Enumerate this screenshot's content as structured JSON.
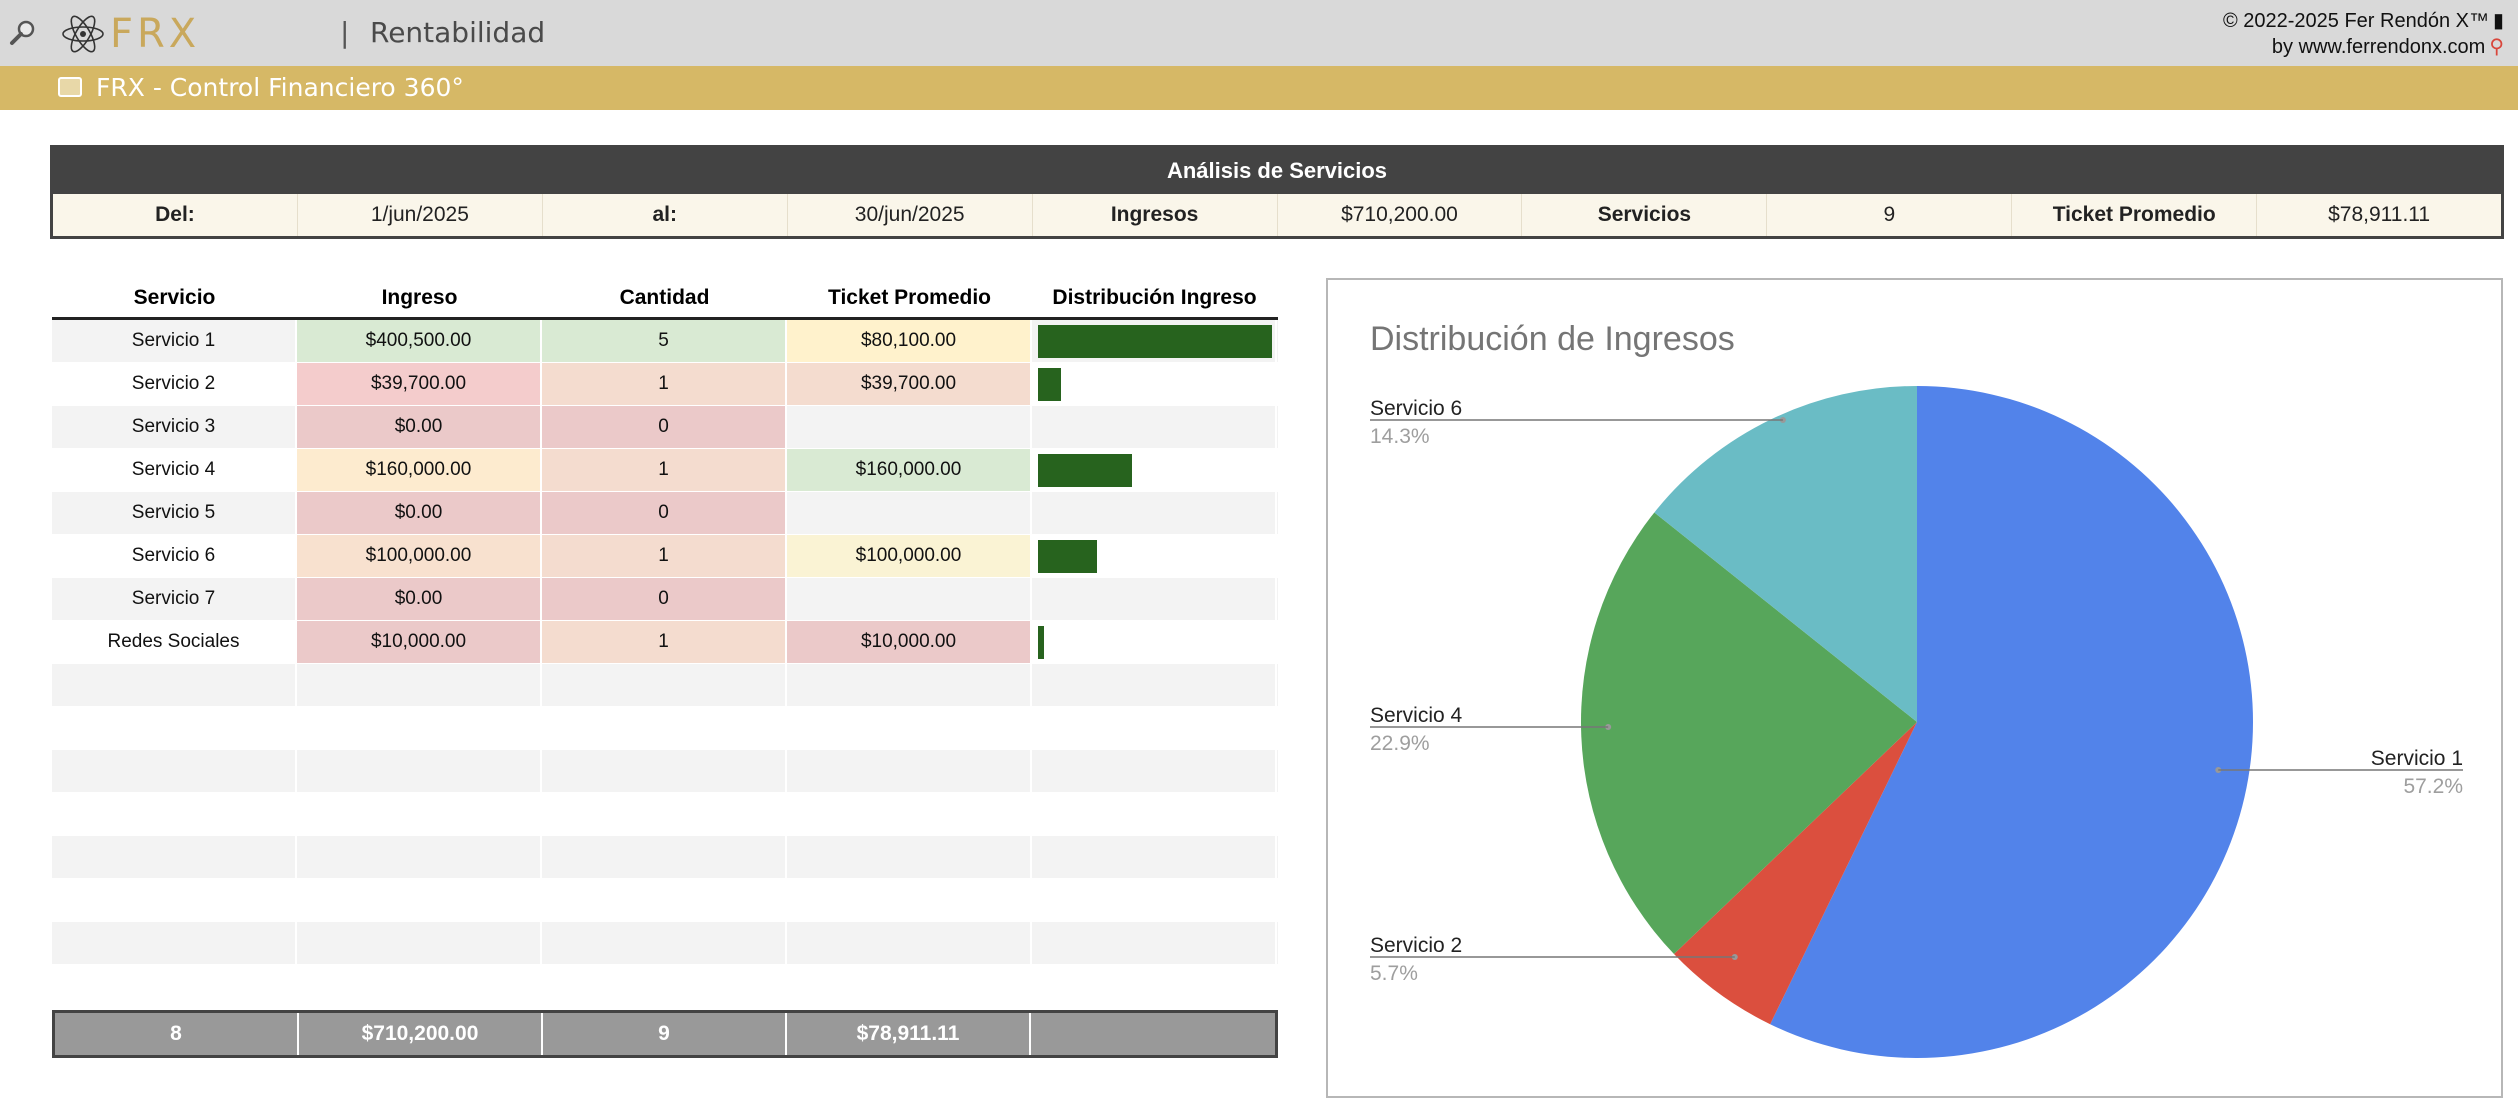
{
  "topbar": {
    "logo_text": "FRX",
    "separator": "|",
    "title": "Rentabilidad",
    "credits_line1": "© 2022-2025 Fer Rendón X™",
    "credits_line2": "by www.ferrendonx.com",
    "icons": [
      "search-icon",
      "atom-logo-icon",
      "phone-icon",
      "pin-icon"
    ]
  },
  "banner": {
    "title": "FRX - Control Financiero 360°"
  },
  "summary": {
    "title": "Análisis de Servicios",
    "from_label": "Del:",
    "from_value": "1/jun/2025",
    "to_label": "al:",
    "to_value": "30/jun/2025",
    "income_label": "Ingresos",
    "income_value": "$710,200.00",
    "services_label": "Servicios",
    "services_value": "9",
    "ticket_label": "Ticket Promedio",
    "ticket_value": "$78,911.11"
  },
  "table": {
    "headers": [
      "Servicio",
      "Ingreso",
      "Cantidad",
      "Ticket Promedio",
      "Distribución Ingreso"
    ],
    "rows": [
      {
        "servicio": "Servicio 1",
        "ingreso": "$400,500.00",
        "cantidad": "5",
        "ticket": "$80,100.00",
        "share": 1.0,
        "colors": [
          "#d9ead3",
          "#d9ead3",
          "#fff2cc"
        ]
      },
      {
        "servicio": "Servicio 2",
        "ingreso": "$39,700.00",
        "cantidad": "1",
        "ticket": "$39,700.00",
        "share": 0.099,
        "colors": [
          "#f4cccc",
          "#f4dccf",
          "#f4dccf"
        ]
      },
      {
        "servicio": "Servicio 3",
        "ingreso": "$0.00",
        "cantidad": "0",
        "ticket": "",
        "share": 0,
        "colors": [
          "#ebc9c9",
          "#ebc9c9",
          ""
        ]
      },
      {
        "servicio": "Servicio 4",
        "ingreso": "$160,000.00",
        "cantidad": "1",
        "ticket": "$160,000.00",
        "share": 0.4,
        "colors": [
          "#fdebcf",
          "#f4dccf",
          "#d9ead3"
        ]
      },
      {
        "servicio": "Servicio 5",
        "ingreso": "$0.00",
        "cantidad": "0",
        "ticket": "",
        "share": 0,
        "colors": [
          "#ebc9c9",
          "#ebc9c9",
          ""
        ]
      },
      {
        "servicio": "Servicio 6",
        "ingreso": "$100,000.00",
        "cantidad": "1",
        "ticket": "$100,000.00",
        "share": 0.25,
        "colors": [
          "#f8e1cf",
          "#f4dccf",
          "#faf3d4"
        ]
      },
      {
        "servicio": "Servicio 7",
        "ingreso": "$0.00",
        "cantidad": "0",
        "ticket": "",
        "share": 0,
        "colors": [
          "#ebc9c9",
          "#ebc9c9",
          ""
        ]
      },
      {
        "servicio": "Redes Sociales",
        "ingreso": "$10,000.00",
        "cantidad": "1",
        "ticket": "$10,000.00",
        "share": 0.025,
        "colors": [
          "#ebc9c9",
          "#f4dccf",
          "#ebc9c9"
        ]
      }
    ],
    "footer": [
      "8",
      "$710,200.00",
      "9",
      "$78,911.11",
      ""
    ]
  },
  "chart_data": {
    "type": "pie",
    "title": "Distribución de Ingresos",
    "slices": [
      {
        "name": "Servicio 1",
        "value": 400500,
        "percent_label": "57.2%",
        "color": "#5283ea"
      },
      {
        "name": "Servicio 2",
        "value": 39700,
        "percent_label": "5.7%",
        "color": "#db4f3e"
      },
      {
        "name": "Servicio 4",
        "value": 160000,
        "percent_label": "22.9%",
        "color": "#57a65b"
      },
      {
        "name": "Servicio 6",
        "value": 100000,
        "percent_label": "14.3%",
        "color": "#6abcc5"
      }
    ],
    "start": "12 o'clock",
    "direction": "clockwise"
  },
  "colors": {
    "gold": "#d6b866",
    "header_dark": "#434343",
    "bar_green": "#27631e",
    "footer_gray": "#999999"
  }
}
